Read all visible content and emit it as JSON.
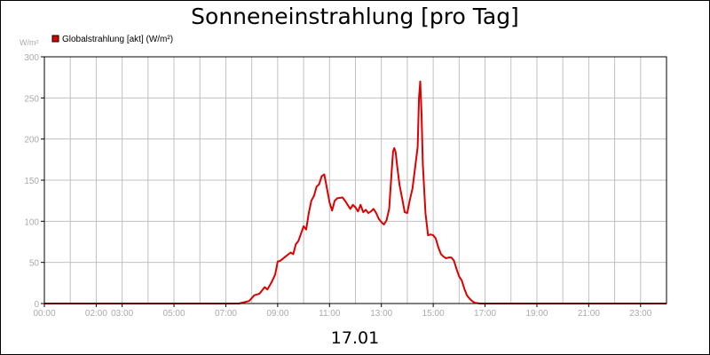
{
  "chart_data": {
    "type": "line",
    "title": "Sonneneinstrahlung [pro Tag]",
    "ylabel": "W/m²",
    "xlabel": "17.01",
    "ylim": [
      0,
      300
    ],
    "xlim": [
      0,
      24
    ],
    "grid": true,
    "legend_placement": "top-left",
    "yticks": [
      "0",
      "50",
      "100",
      "150",
      "200",
      "250",
      "300"
    ],
    "xticks": [
      {
        "x": 0,
        "label": "00:00"
      },
      {
        "x": 2,
        "label": "02:00"
      },
      {
        "x": 3,
        "label": "03:00"
      },
      {
        "x": 5,
        "label": "05:00"
      },
      {
        "x": 7,
        "label": "07:00"
      },
      {
        "x": 9,
        "label": "09:00"
      },
      {
        "x": 11,
        "label": "11:00"
      },
      {
        "x": 13,
        "label": "13:00"
      },
      {
        "x": 15,
        "label": "15:00"
      },
      {
        "x": 17,
        "label": "17:00"
      },
      {
        "x": 19,
        "label": "19:00"
      },
      {
        "x": 21,
        "label": "21:00"
      },
      {
        "x": 23,
        "label": "23:00"
      }
    ],
    "series": [
      {
        "name": "Globalstrahlung [akt] (W/m²)",
        "color": "#dd0000",
        "x": [
          0,
          7.5,
          7.9,
          8.1,
          8.3,
          8.5,
          8.6,
          8.75,
          8.9,
          9.0,
          9.1,
          9.3,
          9.5,
          9.6,
          9.7,
          9.8,
          9.9,
          10.0,
          10.1,
          10.2,
          10.3,
          10.4,
          10.5,
          10.6,
          10.7,
          10.8,
          10.9,
          11.0,
          11.1,
          11.2,
          11.3,
          11.5,
          11.6,
          11.7,
          11.8,
          11.9,
          12.0,
          12.1,
          12.2,
          12.3,
          12.4,
          12.5,
          12.6,
          12.7,
          12.8,
          12.9,
          13.0,
          13.1,
          13.2,
          13.3,
          13.4,
          13.45,
          13.5,
          13.55,
          13.6,
          13.7,
          13.8,
          13.9,
          14.0,
          14.1,
          14.2,
          14.3,
          14.4,
          14.45,
          14.5,
          14.55,
          14.6,
          14.7,
          14.8,
          14.9,
          15.0,
          15.1,
          15.2,
          15.3,
          15.4,
          15.5,
          15.6,
          15.7,
          15.8,
          15.9,
          16.0,
          16.1,
          16.2,
          16.3,
          16.4,
          16.5,
          16.6,
          16.8,
          17.0,
          17.5,
          24
        ],
        "values": [
          0,
          0,
          3,
          10,
          12,
          20,
          17,
          25,
          35,
          51,
          52,
          57,
          62,
          60,
          72,
          76,
          85,
          94,
          90,
          110,
          125,
          131,
          142,
          145,
          155,
          157,
          140,
          123,
          113,
          125,
          128,
          129,
          125,
          120,
          115,
          120,
          117,
          112,
          120,
          111,
          114,
          110,
          112,
          115,
          110,
          103,
          99,
          96,
          101,
          115,
          162,
          185,
          189,
          184,
          170,
          144,
          128,
          111,
          110,
          126,
          140,
          165,
          190,
          250,
          270,
          230,
          170,
          110,
          83,
          84,
          83,
          79,
          68,
          60,
          57,
          55,
          56,
          56,
          52,
          42,
          33,
          28,
          18,
          10,
          6,
          3,
          1,
          0,
          0,
          0,
          0
        ]
      }
    ]
  }
}
